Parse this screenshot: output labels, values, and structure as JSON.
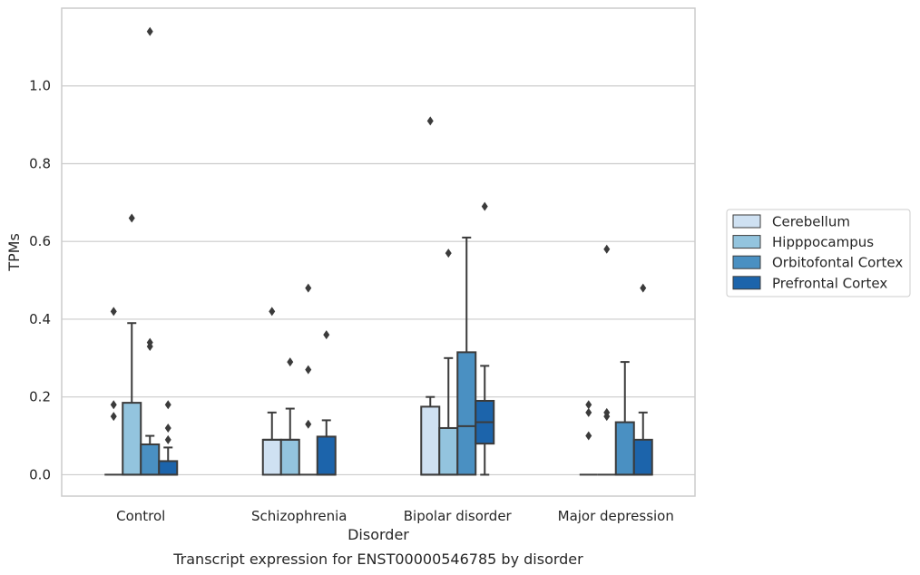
{
  "chart_data": {
    "type": "box",
    "caption": "Transcript expression for ENST00000546785 by disorder",
    "xlabel": "Disorder",
    "ylabel": "TPMs",
    "ylim": [
      -0.055,
      1.2
    ],
    "yticks": [
      0.0,
      0.2,
      0.4,
      0.6,
      0.8,
      1.0
    ],
    "ytick_labels": [
      "0.0",
      "0.2",
      "0.4",
      "0.6",
      "0.8",
      "1.0"
    ],
    "grid": "horizontal",
    "legend_position": "outside-right",
    "categories": [
      "Control",
      "Schizophrenia",
      "Bipolar disorder",
      "Major depression"
    ],
    "series": [
      {
        "name": "Cerebellum",
        "color": "#cfe1f2",
        "boxes": [
          {
            "q1": 0.0,
            "median": 0.0,
            "q3": 0.0,
            "whisker_low": 0.0,
            "whisker_high": 0.0,
            "outliers": [
              0.42,
              0.18,
              0.15
            ]
          },
          {
            "q1": 0.0,
            "median": 0.09,
            "q3": 0.09,
            "whisker_low": 0.0,
            "whisker_high": 0.16,
            "outliers": [
              0.42
            ]
          },
          {
            "q1": 0.0,
            "median": 0.0,
            "q3": 0.175,
            "whisker_low": 0.0,
            "whisker_high": 0.2,
            "outliers": [
              0.91
            ]
          },
          {
            "q1": 0.0,
            "median": 0.0,
            "q3": 0.0,
            "whisker_low": 0.0,
            "whisker_high": 0.0,
            "outliers": [
              0.18,
              0.16,
              0.1
            ]
          }
        ]
      },
      {
        "name": "Hipppocampus",
        "color": "#93c4de",
        "boxes": [
          {
            "q1": 0.0,
            "median": 0.0,
            "q3": 0.185,
            "whisker_low": 0.0,
            "whisker_high": 0.39,
            "outliers": [
              0.66
            ]
          },
          {
            "q1": 0.0,
            "median": 0.09,
            "q3": 0.09,
            "whisker_low": 0.0,
            "whisker_high": 0.17,
            "outliers": [
              0.29
            ]
          },
          {
            "q1": 0.0,
            "median": 0.0,
            "q3": 0.12,
            "whisker_low": 0.0,
            "whisker_high": 0.3,
            "outliers": [
              0.57
            ]
          },
          {
            "q1": 0.0,
            "median": 0.0,
            "q3": 0.0,
            "whisker_low": 0.0,
            "whisker_high": 0.0,
            "outliers": [
              0.58,
              0.16,
              0.15
            ]
          }
        ]
      },
      {
        "name": "Orbitofontal Cortex",
        "color": "#4a90c2",
        "boxes": [
          {
            "q1": 0.0,
            "median": 0.0,
            "q3": 0.078,
            "whisker_low": 0.0,
            "whisker_high": 0.1,
            "outliers": [
              1.14,
              0.34,
              0.33
            ]
          },
          {
            "q1": 0.0,
            "median": 0.0,
            "q3": 0.0,
            "whisker_low": 0.0,
            "whisker_high": 0.0,
            "outliers": [
              0.48,
              0.27,
              0.13
            ]
          },
          {
            "q1": 0.0,
            "median": 0.125,
            "q3": 0.315,
            "whisker_low": 0.0,
            "whisker_high": 0.61,
            "outliers": []
          },
          {
            "q1": 0.0,
            "median": 0.0,
            "q3": 0.135,
            "whisker_low": 0.0,
            "whisker_high": 0.29,
            "outliers": []
          }
        ]
      },
      {
        "name": "Prefrontal Cortex",
        "color": "#1c64ab",
        "boxes": [
          {
            "q1": 0.0,
            "median": 0.0,
            "q3": 0.035,
            "whisker_low": 0.0,
            "whisker_high": 0.07,
            "outliers": [
              0.18,
              0.12,
              0.09
            ]
          },
          {
            "q1": 0.0,
            "median": 0.0,
            "q3": 0.098,
            "whisker_low": 0.0,
            "whisker_high": 0.14,
            "outliers": [
              0.36
            ]
          },
          {
            "q1": 0.08,
            "median": 0.135,
            "q3": 0.19,
            "whisker_low": 0.0,
            "whisker_high": 0.28,
            "outliers": [
              0.69
            ]
          },
          {
            "q1": 0.0,
            "median": 0.0,
            "q3": 0.09,
            "whisker_low": 0.0,
            "whisker_high": 0.16,
            "outliers": [
              0.48
            ]
          }
        ]
      }
    ]
  }
}
